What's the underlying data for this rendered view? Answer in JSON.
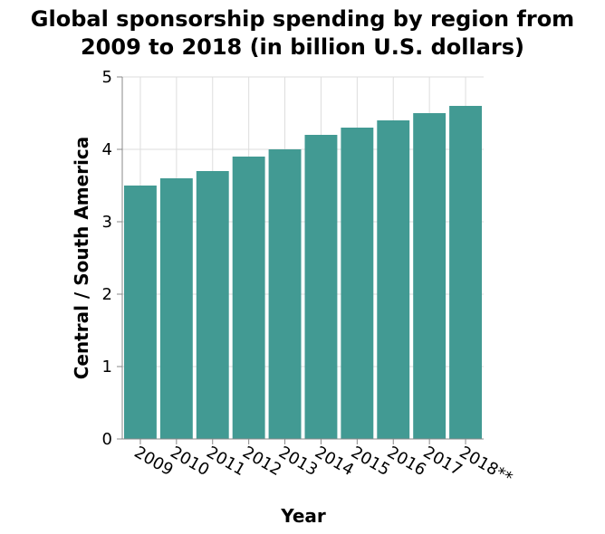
{
  "chart_data": {
    "type": "bar",
    "title_lines": [
      "Global sponsorship spending by region from",
      "2009 to 2018 (in billion U.S. dollars)"
    ],
    "xlabel": "Year",
    "ylabel": "Central / South America",
    "categories": [
      "2009",
      "2010",
      "2011",
      "2012",
      "2013",
      "2014",
      "2015",
      "2016",
      "2017",
      "2018**"
    ],
    "values": [
      3.5,
      3.6,
      3.7,
      3.9,
      4.0,
      4.2,
      4.3,
      4.4,
      4.5,
      4.6
    ],
    "ylim": [
      0,
      5
    ],
    "yticks": [
      "0",
      "1",
      "2",
      "3",
      "4",
      "5"
    ],
    "grid": true,
    "bar_color": "#429a93"
  }
}
